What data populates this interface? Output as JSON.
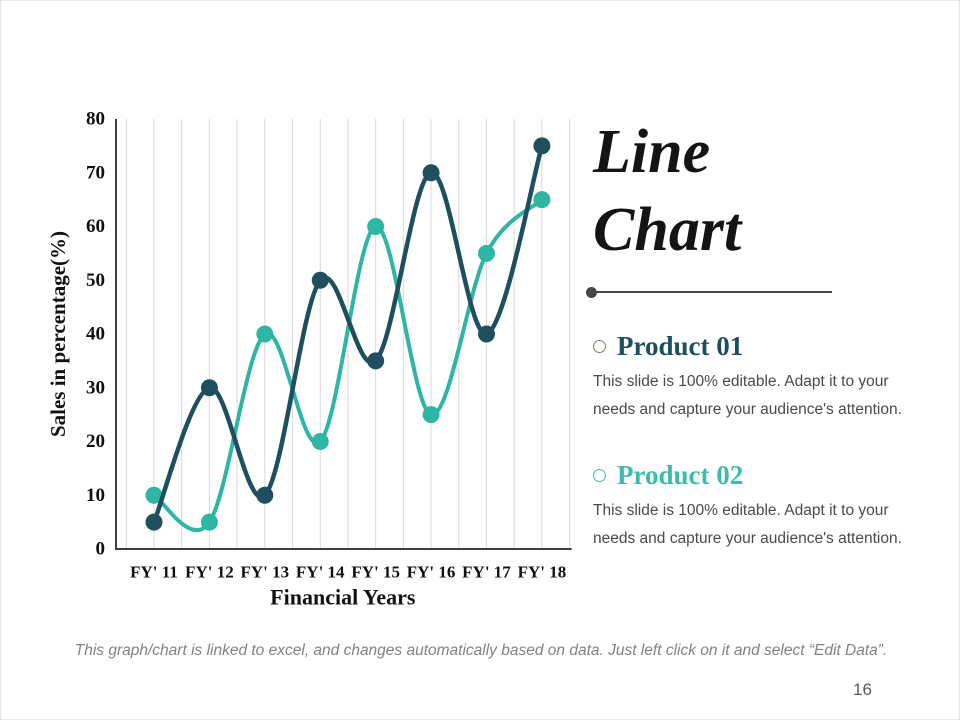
{
  "chart_data": {
    "type": "line",
    "title": "",
    "categories": [
      "FY' 11",
      "FY' 12",
      "FY' 13",
      "FY' 14",
      "FY' 15",
      "FY' 16",
      "FY' 17",
      "FY' 18"
    ],
    "series": [
      {
        "name": "Product 01",
        "color": "#1F4E5F",
        "values": [
          5,
          30,
          10,
          50,
          35,
          70,
          40,
          75
        ]
      },
      {
        "name": "Product 02",
        "color": "#2FB5A3",
        "values": [
          10,
          5,
          40,
          20,
          60,
          25,
          55,
          65
        ]
      }
    ],
    "xlabel": "Financial Years",
    "ylabel": "Sales in percentage(%)",
    "ylim": [
      0,
      80
    ],
    "ytick_step": 10,
    "grid": "vertical",
    "line_style": "smooth",
    "markers": true,
    "legend": "none"
  },
  "panel": {
    "title_lines": [
      "Line",
      "Chart"
    ],
    "products": [
      {
        "name": "Product 01",
        "color": "#1E4E5F",
        "bullet_color": "#8A7A5E",
        "description": "This slide is 100% editable. Adapt it to your needs and capture your audience's attention."
      },
      {
        "name": "Product 02",
        "color": "#3EBCAB",
        "bullet_color": "#3EBCAB",
        "description": "This slide is 100% editable. Adapt it to your needs and capture your audience's attention."
      }
    ]
  },
  "footer": {
    "note": "This graph/chart is linked to excel, and changes automatically based on data. Just left click on it and select “Edit Data”.",
    "page_number": "16"
  }
}
